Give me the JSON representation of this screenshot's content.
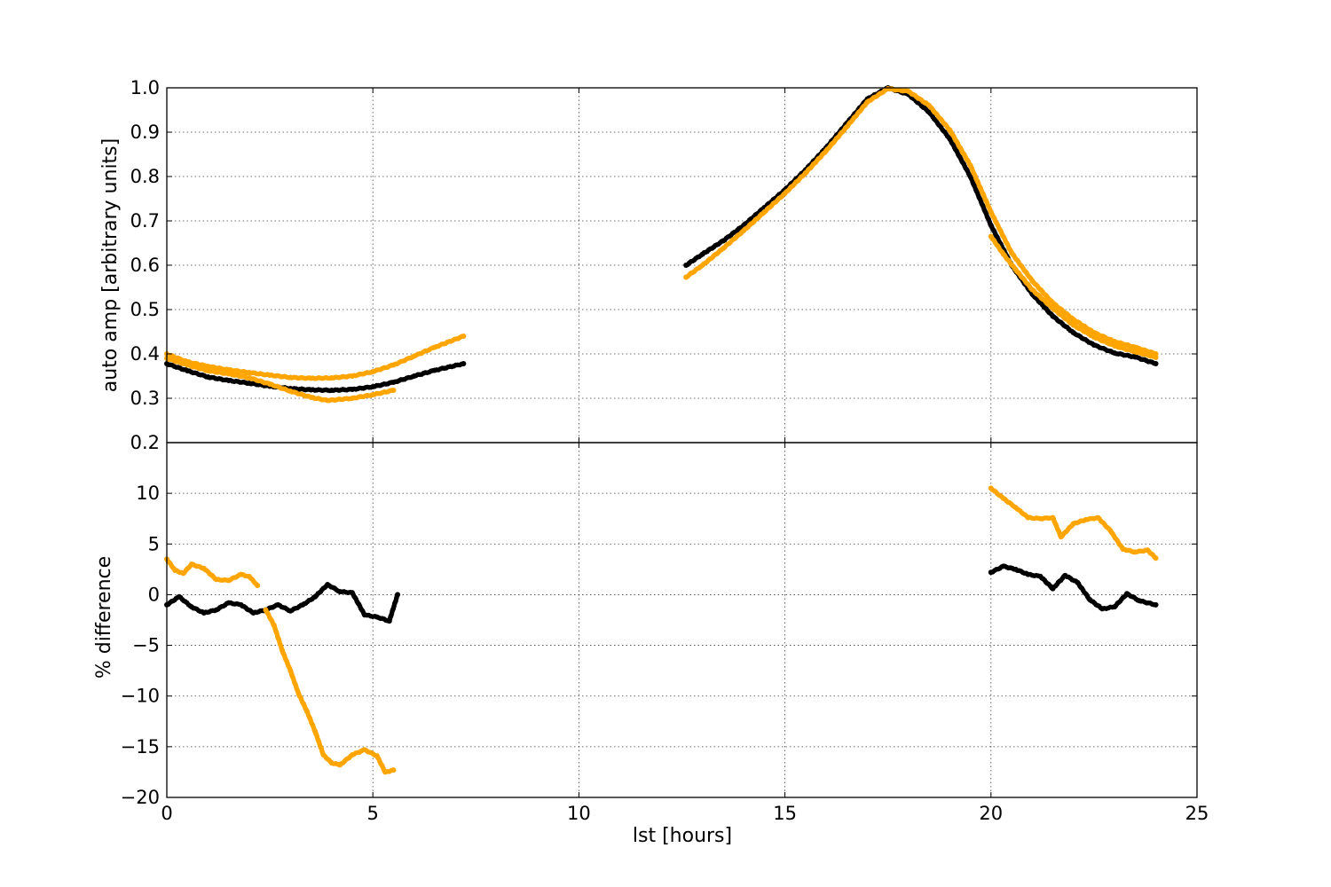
{
  "chart_data": [
    {
      "type": "scatter",
      "panel": "top",
      "ylabel": "auto amp [arbitrary units]",
      "xlabel": "",
      "xlim": [
        0,
        25
      ],
      "ylim": [
        0.2,
        1.0
      ],
      "grid": true,
      "xticks": [
        0,
        5,
        10,
        15,
        20,
        25
      ],
      "xtick_labels": [
        "",
        "",
        "",
        "",
        "",
        ""
      ],
      "yticks": [
        0.2,
        0.3,
        0.4,
        0.5,
        0.6,
        0.7,
        0.8,
        0.9,
        1.0
      ],
      "ytick_labels": [
        "0.2",
        "0.3",
        "0.4",
        "0.5",
        "0.6",
        "0.7",
        "0.8",
        "0.9",
        "1.0"
      ],
      "series": [
        {
          "name": "black-segment-1",
          "color": "#000000",
          "x": [
            0.0,
            0.5,
            1.0,
            1.5,
            2.0,
            2.5,
            3.0,
            3.5,
            4.0,
            4.5,
            5.0,
            5.5,
            6.0,
            6.5,
            7.2
          ],
          "y": [
            0.378,
            0.362,
            0.348,
            0.34,
            0.334,
            0.327,
            0.322,
            0.319,
            0.318,
            0.32,
            0.326,
            0.336,
            0.35,
            0.363,
            0.378
          ]
        },
        {
          "name": "black-segment-2",
          "color": "#000000",
          "x": [
            12.6,
            13.0,
            13.5,
            14.0,
            14.5,
            15.0,
            15.5,
            16.0,
            16.5,
            17.0,
            17.5,
            18.0,
            18.5,
            19.0,
            19.5,
            20.0,
            20.5,
            21.0,
            21.5,
            22.0,
            22.5,
            23.0,
            23.5,
            24.0
          ],
          "y": [
            0.6,
            0.625,
            0.655,
            0.69,
            0.73,
            0.77,
            0.815,
            0.865,
            0.92,
            0.975,
            1.0,
            0.985,
            0.945,
            0.885,
            0.8,
            0.69,
            0.6,
            0.535,
            0.485,
            0.448,
            0.42,
            0.402,
            0.393,
            0.378
          ]
        },
        {
          "name": "orange-segment-1",
          "color": "#ffa500",
          "x": [
            0.0,
            0.5,
            1.0,
            1.5,
            2.0,
            2.5,
            3.0,
            3.5,
            4.0,
            4.5,
            5.0,
            5.5,
            6.0,
            6.5,
            7.2
          ],
          "y": [
            0.4,
            0.382,
            0.372,
            0.364,
            0.358,
            0.352,
            0.347,
            0.345,
            0.346,
            0.35,
            0.36,
            0.375,
            0.395,
            0.415,
            0.44
          ]
        },
        {
          "name": "orange-segment-1b",
          "color": "#ffa500",
          "x": [
            0.0,
            0.5,
            1.0,
            1.5,
            2.0,
            2.5,
            3.0,
            3.5,
            3.9,
            4.5,
            5.0,
            5.5
          ],
          "y": [
            0.39,
            0.375,
            0.362,
            0.355,
            0.346,
            0.332,
            0.316,
            0.302,
            0.295,
            0.3,
            0.308,
            0.318
          ]
        },
        {
          "name": "orange-segment-2",
          "color": "#ffa500",
          "x": [
            12.6,
            13.0,
            13.5,
            14.0,
            14.5,
            15.0,
            15.5,
            16.0,
            16.5,
            17.0,
            17.5,
            18.0,
            18.5,
            19.0,
            19.5,
            20.0,
            20.5,
            21.0,
            21.5,
            22.0,
            22.5,
            23.0,
            23.5,
            24.0
          ],
          "y": [
            0.573,
            0.6,
            0.638,
            0.678,
            0.72,
            0.762,
            0.808,
            0.858,
            0.912,
            0.968,
            0.998,
            0.992,
            0.96,
            0.905,
            0.825,
            0.72,
            0.628,
            0.565,
            0.515,
            0.478,
            0.448,
            0.428,
            0.415,
            0.4
          ]
        },
        {
          "name": "orange-segment-3",
          "color": "#ffa500",
          "x": [
            20.0,
            20.3,
            20.6,
            21.0,
            21.5,
            22.0,
            22.5,
            23.0,
            23.5,
            24.0
          ],
          "y": [
            0.665,
            0.625,
            0.59,
            0.545,
            0.503,
            0.465,
            0.438,
            0.418,
            0.405,
            0.392
          ]
        }
      ]
    },
    {
      "type": "scatter",
      "panel": "bottom",
      "ylabel": "% difference",
      "xlabel": "lst [hours]",
      "xlim": [
        0,
        25
      ],
      "ylim": [
        -20,
        15
      ],
      "grid": true,
      "xticks": [
        0,
        5,
        10,
        15,
        20,
        25
      ],
      "xtick_labels": [
        "0",
        "5",
        "10",
        "15",
        "20",
        "25"
      ],
      "yticks": [
        -20,
        -15,
        -10,
        -5,
        0,
        5,
        10
      ],
      "ytick_labels": [
        "−20",
        "−15",
        "−10",
        "−5",
        "0",
        "5",
        "10"
      ],
      "series": [
        {
          "name": "black-diff-1",
          "color": "#000000",
          "x": [
            0.0,
            0.3,
            0.6,
            0.9,
            1.2,
            1.5,
            1.8,
            2.1,
            2.4,
            2.7,
            3.0,
            3.3,
            3.6,
            3.9,
            4.2,
            4.5,
            4.8,
            5.1,
            5.4,
            5.6
          ],
          "y": [
            -1.0,
            -0.2,
            -1.2,
            -1.8,
            -1.5,
            -0.8,
            -1.0,
            -1.8,
            -1.5,
            -1.0,
            -1.6,
            -1.0,
            -0.2,
            1.0,
            0.3,
            0.2,
            -2.0,
            -2.2,
            -2.6,
            0.0
          ]
        },
        {
          "name": "black-diff-2",
          "color": "#000000",
          "x": [
            20.0,
            20.3,
            20.6,
            20.9,
            21.2,
            21.5,
            21.8,
            22.1,
            22.4,
            22.7,
            23.0,
            23.3,
            23.6,
            24.0
          ],
          "y": [
            2.2,
            2.8,
            2.5,
            2.0,
            1.8,
            0.6,
            1.9,
            1.2,
            -0.5,
            -1.4,
            -1.2,
            0.1,
            -0.6,
            -1.0
          ]
        },
        {
          "name": "orange-diff-1",
          "color": "#ffa500",
          "x": [
            0.0,
            0.2,
            0.4,
            0.6,
            0.9,
            1.2,
            1.5,
            1.8,
            2.0,
            2.2
          ],
          "y": [
            3.5,
            2.4,
            2.1,
            3.0,
            2.6,
            1.5,
            1.4,
            2.0,
            1.8,
            0.9
          ]
        },
        {
          "name": "orange-diff-2",
          "color": "#ffa500",
          "x": [
            2.4,
            2.6,
            2.8,
            3.0,
            3.2,
            3.4,
            3.6,
            3.8,
            4.0,
            4.2,
            4.5,
            4.8,
            5.1,
            5.3,
            5.5
          ],
          "y": [
            -1.5,
            -3.0,
            -5.5,
            -7.5,
            -9.8,
            -11.5,
            -13.5,
            -15.8,
            -16.6,
            -16.8,
            -15.8,
            -15.3,
            -15.9,
            -17.5,
            -17.3
          ]
        },
        {
          "name": "orange-diff-3",
          "color": "#ffa500",
          "x": [
            20.0,
            20.3,
            20.6,
            20.9,
            21.2,
            21.5,
            21.7,
            22.0,
            22.3,
            22.6,
            22.9,
            23.2,
            23.5,
            23.8,
            24.0
          ],
          "y": [
            10.5,
            9.5,
            8.6,
            7.6,
            7.5,
            7.6,
            5.7,
            7.0,
            7.4,
            7.6,
            6.3,
            4.5,
            4.2,
            4.4,
            3.6
          ]
        }
      ]
    }
  ]
}
